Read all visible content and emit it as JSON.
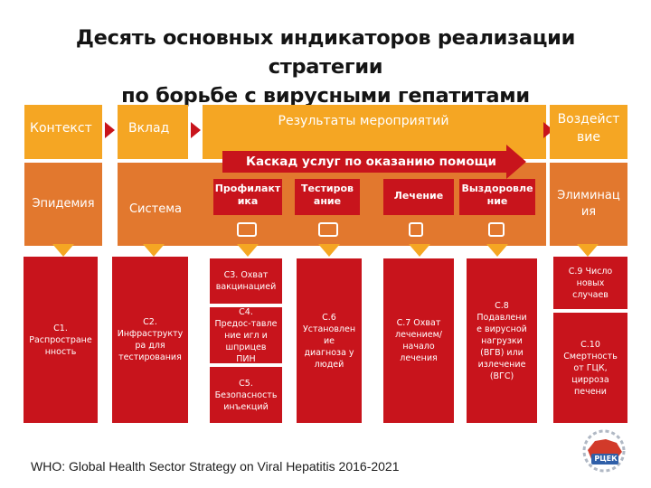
{
  "title_line1": "Десять основных индикаторов реализации стратегии",
  "title_line2": "по борьбе с вирусными гепатитами",
  "columns": {
    "context": {
      "header": "Контекст",
      "sub": "Эпидемия"
    },
    "input": {
      "header": "Вклад",
      "sub": "Система"
    },
    "results": {
      "header": "Результаты мероприятий"
    },
    "impact": {
      "header_line1": "Воздейст",
      "header_line2": "вие",
      "sub_line1": "Элиминац",
      "sub_line2": "ия"
    }
  },
  "cascade": {
    "label": "Каскад услуг по оказанию помощи"
  },
  "services": [
    {
      "line1": "Профилакт",
      "line2": "ика",
      "icon": "syringe-icon"
    },
    {
      "line1": "Тестиров",
      "line2": "ание",
      "icon": "test-tube-icon"
    },
    {
      "line1": "Лечение",
      "line2": "",
      "icon": "pill-icon"
    },
    {
      "line1": "Выздоровле",
      "line2": "ние",
      "icon": "recovered-person-icon"
    }
  ],
  "indicators": {
    "c1": [
      "С1.",
      "Распростране",
      "нность"
    ],
    "c2": [
      "С2.",
      "Инфраструкту",
      "ра для",
      "тестирования"
    ],
    "c3": [
      "С3. Охват",
      "вакцинацией"
    ],
    "c4": [
      "С4.",
      "Предос-тавле",
      "ние игл и",
      "шприцев",
      "ПИН"
    ],
    "c5": [
      "С5.",
      "Безопасность",
      "инъекций"
    ],
    "c6": [
      "С.6",
      "Установлен",
      "ие",
      "диагноза у",
      "людей"
    ],
    "c7": [
      "С.7 Охват",
      "лечением/",
      "начало",
      "лечения"
    ],
    "c8": [
      "С.8",
      "Подавлени",
      "е вирусной",
      "нагрузки",
      "(ВГВ) или",
      "излечение",
      "(ВГС)"
    ],
    "c9": [
      "С.9 Число",
      "новых",
      "случаев"
    ],
    "c10": [
      "С.10",
      "Смертность",
      "от ГЦК,",
      "цирроза",
      "печени"
    ]
  },
  "citation": "WHO: Global Health Sector Strategy on Viral Hepatitis 2016-2021",
  "logo": {
    "text": "РЦЕК"
  },
  "colors": {
    "orange_light": "#f5a623",
    "orange_dark": "#e2782e",
    "red": "#c8141c"
  }
}
